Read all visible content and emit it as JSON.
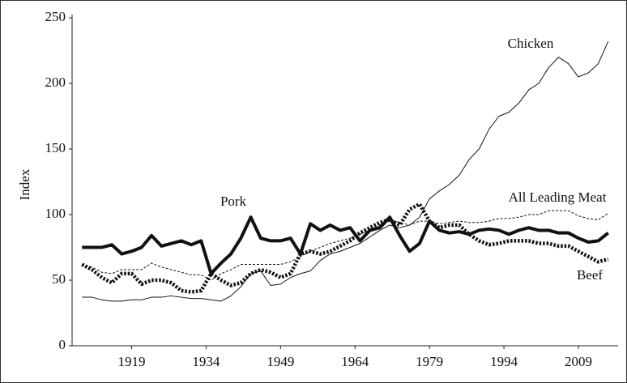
{
  "chart_data": {
    "type": "line",
    "y_label": "Index",
    "xlim": [
      1907,
      2017
    ],
    "xticks": [
      1919,
      1934,
      1949,
      1964,
      1979,
      1994,
      2009
    ],
    "ylim": [
      0,
      250
    ],
    "yticks": [
      0,
      50,
      100,
      150,
      200,
      250
    ],
    "x": [
      1909,
      1911,
      1913,
      1915,
      1917,
      1919,
      1921,
      1923,
      1925,
      1927,
      1929,
      1931,
      1933,
      1935,
      1937,
      1939,
      1941,
      1943,
      1945,
      1947,
      1949,
      1951,
      1953,
      1955,
      1957,
      1959,
      1961,
      1963,
      1965,
      1967,
      1969,
      1971,
      1973,
      1975,
      1977,
      1979,
      1981,
      1983,
      1985,
      1987,
      1989,
      1991,
      1993,
      1995,
      1997,
      1999,
      2001,
      2003,
      2005,
      2007,
      2009,
      2011,
      2013,
      2015
    ],
    "series": [
      {
        "name": "Chicken",
        "color": "#111111",
        "line_style": "thin-solid",
        "values": [
          37,
          37,
          35,
          34,
          34,
          35,
          35,
          37,
          37,
          38,
          37,
          36,
          36,
          35,
          34,
          38,
          45,
          55,
          57,
          46,
          47,
          52,
          55,
          57,
          65,
          70,
          72,
          75,
          78,
          83,
          88,
          92,
          90,
          92,
          98,
          112,
          118,
          123,
          130,
          142,
          150,
          165,
          175,
          178,
          185,
          195,
          200,
          212,
          220,
          215,
          205,
          208,
          215,
          232
        ]
      },
      {
        "name": "Pork",
        "color": "#111111",
        "line_style": "thick-solid",
        "values": [
          75,
          75,
          75,
          77,
          70,
          72,
          75,
          84,
          76,
          78,
          80,
          77,
          80,
          55,
          63,
          70,
          82,
          98,
          82,
          80,
          80,
          82,
          70,
          93,
          88,
          92,
          88,
          90,
          80,
          88,
          90,
          98,
          84,
          72,
          78,
          95,
          88,
          86,
          87,
          85,
          88,
          89,
          88,
          85,
          88,
          90,
          88,
          88,
          86,
          86,
          82,
          79,
          80,
          86
        ]
      },
      {
        "name": "All Leading Meat",
        "color": "#111111",
        "line_style": "thin-dashed",
        "values": [
          62,
          60,
          56,
          55,
          58,
          58,
          58,
          63,
          60,
          58,
          56,
          54,
          54,
          50,
          55,
          58,
          62,
          62,
          62,
          62,
          62,
          64,
          68,
          72,
          75,
          78,
          80,
          82,
          85,
          88,
          92,
          96,
          94,
          92,
          95,
          95,
          93,
          94,
          95,
          94,
          94,
          95,
          97,
          97,
          98,
          100,
          100,
          103,
          103,
          103,
          99,
          97,
          96,
          101
        ]
      },
      {
        "name": "Beef",
        "color": "#111111",
        "line_style": "thick-dotted",
        "values": [
          62,
          58,
          52,
          48,
          55,
          55,
          47,
          50,
          50,
          48,
          42,
          41,
          42,
          55,
          50,
          46,
          48,
          55,
          58,
          56,
          52,
          55,
          70,
          72,
          70,
          72,
          76,
          80,
          86,
          90,
          94,
          96,
          92,
          104,
          108,
          95,
          90,
          92,
          92,
          85,
          80,
          77,
          78,
          80,
          80,
          80,
          78,
          78,
          76,
          76,
          72,
          68,
          64,
          66
        ]
      }
    ]
  }
}
